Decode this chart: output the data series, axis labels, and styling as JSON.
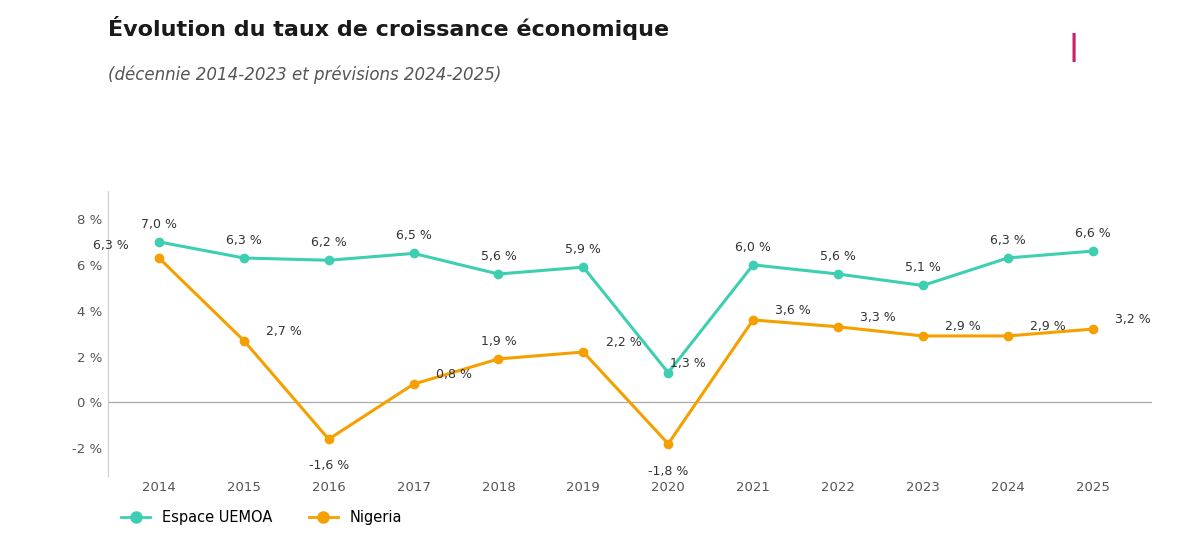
{
  "years": [
    2014,
    2015,
    2016,
    2017,
    2018,
    2019,
    2020,
    2021,
    2022,
    2023,
    2024,
    2025
  ],
  "uemoa": [
    7.0,
    6.3,
    6.2,
    6.5,
    5.6,
    5.9,
    1.3,
    6.0,
    5.6,
    5.1,
    6.3,
    6.6
  ],
  "nigeria": [
    6.3,
    2.7,
    -1.6,
    0.8,
    1.9,
    2.2,
    -1.8,
    3.6,
    3.3,
    2.9,
    2.9,
    3.2
  ],
  "uemoa_labels": [
    "7,0 %",
    "6,3 %",
    "6,2 %",
    "6,5 %",
    "5,6 %",
    "5,9 %",
    "1,3 %",
    "6,0 %",
    "5,6 %",
    "5,1 %",
    "6,3 %",
    "6,6 %"
  ],
  "nigeria_labels": [
    "6,3 %",
    "2,7 %",
    "-1,6 %",
    "0,8 %",
    "1,9 %",
    "2,2 %",
    "-1,8 %",
    "3,6 %",
    "3,3 %",
    "2,9 %",
    "2,9 %",
    "3,2 %"
  ],
  "uemoa_color": "#3ecfb2",
  "nigeria_color": "#f5a000",
  "title": "Évolution du taux de croissance économique",
  "subtitle": "(décennie 2014-2023 et prévisions 2024-2025)",
  "ylim_min": -3.2,
  "ylim_max": 9.2,
  "yticks": [
    -2,
    0,
    2,
    4,
    6,
    8
  ],
  "ytick_labels": [
    "-2 %",
    "0 %",
    "2 %",
    "4 %",
    "6 %",
    "8 %"
  ],
  "bg_color": "#ffffff",
  "accent_color": "#cc1f6e",
  "legend_uemoa": "Espace UEMOA",
  "legend_nigeria": "Nigeria",
  "title_fontsize": 16,
  "subtitle_fontsize": 12,
  "label_fontsize": 9
}
